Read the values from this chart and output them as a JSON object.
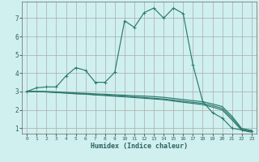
{
  "xlabel": "Humidex (Indice chaleur)",
  "bg_color": "#cff0ee",
  "grid_color": "#aaaaaa",
  "line_color": "#2d7a6e",
  "xlim": [
    -0.5,
    23.5
  ],
  "ylim": [
    0.7,
    7.9
  ],
  "xticks": [
    0,
    1,
    2,
    3,
    4,
    5,
    6,
    7,
    8,
    9,
    10,
    11,
    12,
    13,
    14,
    15,
    16,
    17,
    18,
    19,
    20,
    21,
    22,
    23
  ],
  "yticks": [
    1,
    2,
    3,
    4,
    5,
    6,
    7
  ],
  "curve1_x": [
    0,
    1,
    2,
    3,
    4,
    5,
    6,
    7,
    8,
    9,
    10,
    11,
    12,
    13,
    14,
    15,
    16,
    17,
    18,
    19,
    20,
    21,
    22,
    23
  ],
  "curve1_y": [
    3.0,
    3.2,
    3.25,
    3.25,
    3.85,
    4.3,
    4.15,
    3.5,
    3.5,
    4.05,
    6.85,
    6.5,
    7.3,
    7.55,
    7.0,
    7.55,
    7.25,
    4.45,
    2.45,
    1.85,
    1.55,
    1.0,
    0.9,
    0.85
  ],
  "curve2_x": [
    0,
    1,
    2,
    3,
    4,
    5,
    6,
    7,
    8,
    9,
    10,
    11,
    12,
    13,
    14,
    15,
    16,
    17,
    18,
    19,
    20,
    21,
    22,
    23
  ],
  "curve2_y": [
    3.0,
    3.0,
    3.0,
    2.98,
    2.95,
    2.92,
    2.9,
    2.87,
    2.85,
    2.82,
    2.8,
    2.77,
    2.75,
    2.72,
    2.68,
    2.62,
    2.56,
    2.5,
    2.44,
    2.32,
    2.18,
    1.65,
    0.98,
    0.88
  ],
  "curve3_x": [
    0,
    1,
    2,
    3,
    4,
    5,
    6,
    7,
    8,
    9,
    10,
    11,
    12,
    13,
    14,
    15,
    16,
    17,
    18,
    19,
    20,
    21,
    22,
    23
  ],
  "curve3_y": [
    3.0,
    3.0,
    2.98,
    2.95,
    2.92,
    2.89,
    2.87,
    2.83,
    2.8,
    2.77,
    2.74,
    2.7,
    2.67,
    2.63,
    2.59,
    2.53,
    2.47,
    2.41,
    2.35,
    2.23,
    2.08,
    1.55,
    0.93,
    0.83
  ],
  "curve4_x": [
    0,
    1,
    2,
    3,
    4,
    5,
    6,
    7,
    8,
    9,
    10,
    11,
    12,
    13,
    14,
    15,
    16,
    17,
    18,
    19,
    20,
    21,
    22,
    23
  ],
  "curve4_y": [
    3.0,
    2.99,
    2.97,
    2.94,
    2.91,
    2.87,
    2.85,
    2.81,
    2.78,
    2.74,
    2.71,
    2.67,
    2.63,
    2.59,
    2.55,
    2.48,
    2.41,
    2.35,
    2.28,
    2.15,
    1.99,
    1.45,
    0.88,
    0.78
  ]
}
